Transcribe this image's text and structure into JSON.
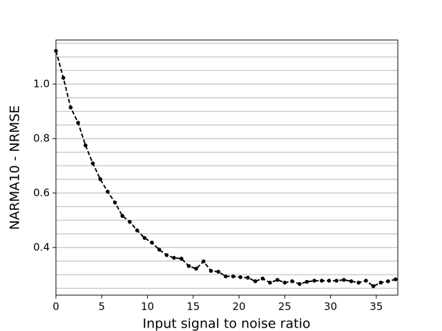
{
  "chart_data": {
    "type": "line",
    "xlabel": "Input signal to noise ratio",
    "ylabel": "NARMA10 - NRMSE",
    "x": [
      0,
      0.81,
      1.61,
      2.42,
      3.23,
      4.03,
      4.84,
      5.65,
      6.45,
      7.26,
      8.07,
      8.87,
      9.68,
      10.48,
      11.29,
      12.1,
      12.9,
      13.71,
      14.52,
      15.32,
      16.13,
      16.94,
      17.74,
      18.55,
      19.36,
      20.16,
      20.97,
      21.78,
      22.58,
      23.39,
      24.2,
      25.0,
      25.81,
      26.62,
      27.42,
      28.23,
      29.04,
      29.84,
      30.65,
      31.46,
      32.26,
      33.07,
      33.87,
      34.68,
      35.49,
      36.29,
      37.1
    ],
    "series": [
      {
        "color": "#000000",
        "values": [
          1.122,
          1.023,
          0.914,
          0.858,
          0.775,
          0.709,
          0.651,
          0.605,
          0.565,
          0.516,
          0.494,
          0.463,
          0.435,
          0.418,
          0.392,
          0.372,
          0.362,
          0.359,
          0.332,
          0.322,
          0.349,
          0.314,
          0.311,
          0.294,
          0.294,
          0.291,
          0.289,
          0.276,
          0.286,
          0.271,
          0.281,
          0.271,
          0.276,
          0.266,
          0.274,
          0.278,
          0.278,
          0.278,
          0.278,
          0.281,
          0.276,
          0.271,
          0.278,
          0.258,
          0.271,
          0.276,
          0.283
        ]
      }
    ],
    "xlim": [
      0,
      37.35
    ],
    "ylim": [
      0.225,
      1.162
    ],
    "xticks": [
      0,
      5,
      10,
      15,
      20,
      25,
      30,
      35
    ],
    "yticks": [
      0.4,
      0.6,
      0.8,
      {
        "value": 1,
        "label": "1.0"
      }
    ],
    "ygrid": [
      0.25,
      0.3,
      0.35,
      0.4,
      0.45,
      0.5,
      0.55,
      0.6,
      0.65,
      0.7,
      0.75,
      0.8,
      0.85,
      0.9,
      0.95,
      1,
      1.05,
      1.1,
      1.15
    ],
    "grid": true
  }
}
